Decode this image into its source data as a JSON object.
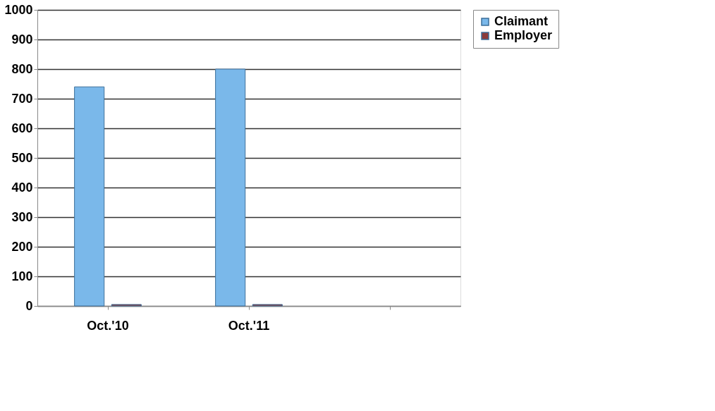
{
  "chart_data": {
    "type": "bar",
    "categories": [
      "Oct.'10",
      "Oct.'11",
      null
    ],
    "series": [
      {
        "name": "Claimant",
        "color": "#7ab8ea",
        "values": [
          740,
          800,
          null
        ]
      },
      {
        "name": "Employer",
        "color": "#8b3a3a",
        "values": [
          5,
          5,
          null
        ]
      }
    ],
    "ylim": [
      0,
      1000
    ],
    "yticks": [
      0,
      100,
      200,
      300,
      400,
      500,
      600,
      700,
      800,
      900,
      1000
    ],
    "grid": "y",
    "legend": "right"
  }
}
